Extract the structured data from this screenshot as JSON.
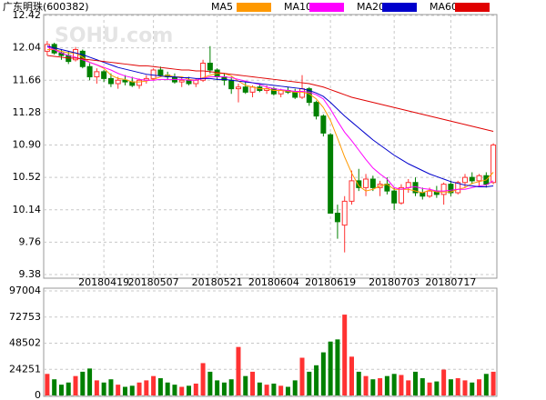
{
  "chart_data": {
    "type": "candlestick",
    "title": "广东明珠(600382)",
    "watermark": "SOHU.com",
    "up_color": "#ff3232",
    "down_color": "#008000",
    "grid": true,
    "categories": [
      null,
      null,
      null,
      null,
      null,
      null,
      null,
      null,
      "20180419",
      null,
      null,
      null,
      null,
      null,
      null,
      "20180507",
      null,
      null,
      null,
      null,
      null,
      null,
      null,
      null,
      "20180521",
      null,
      null,
      null,
      null,
      null,
      null,
      null,
      "20180604",
      null,
      null,
      null,
      null,
      null,
      null,
      null,
      "20180619",
      null,
      null,
      null,
      null,
      null,
      null,
      null,
      null,
      "20180703",
      null,
      null,
      null,
      null,
      null,
      null,
      null,
      "20180717",
      null,
      null,
      null,
      null,
      null,
      null
    ],
    "open": [
      12.0,
      12.08,
      11.98,
      11.95,
      11.9,
      12.0,
      11.82,
      11.7,
      11.76,
      11.68,
      11.62,
      11.66,
      11.64,
      11.6,
      11.66,
      11.68,
      11.78,
      11.72,
      11.7,
      11.64,
      11.66,
      11.62,
      11.66,
      11.86,
      11.78,
      11.7,
      11.66,
      11.56,
      11.58,
      11.52,
      11.58,
      11.54,
      11.56,
      11.5,
      11.54,
      11.52,
      11.46,
      11.56,
      11.4,
      11.24,
      11.02,
      10.1,
      9.96,
      10.24,
      10.48,
      10.4,
      10.5,
      10.4,
      10.44,
      10.36,
      10.22,
      10.4,
      10.46,
      10.34,
      10.3,
      10.36,
      10.32,
      10.44,
      10.34,
      10.46,
      10.52,
      10.48,
      10.54,
      10.46
    ],
    "high": [
      12.12,
      12.1,
      12.02,
      12.0,
      12.05,
      12.02,
      11.86,
      11.8,
      11.78,
      11.74,
      11.7,
      11.72,
      11.7,
      11.68,
      11.72,
      11.8,
      11.82,
      11.76,
      11.74,
      11.7,
      11.7,
      11.68,
      11.9,
      12.06,
      11.8,
      11.74,
      11.7,
      11.62,
      11.64,
      11.6,
      11.62,
      11.6,
      11.58,
      11.56,
      11.58,
      11.56,
      11.72,
      11.58,
      11.42,
      11.26,
      11.04,
      10.2,
      10.3,
      10.6,
      10.62,
      10.56,
      10.54,
      10.48,
      10.52,
      10.4,
      10.44,
      10.5,
      10.52,
      10.4,
      10.4,
      10.42,
      10.46,
      10.48,
      10.48,
      10.56,
      10.58,
      10.56,
      10.58,
      10.92
    ],
    "low": [
      11.95,
      11.96,
      11.9,
      11.85,
      11.88,
      11.8,
      11.66,
      11.62,
      11.64,
      11.58,
      11.56,
      11.6,
      11.58,
      11.56,
      11.62,
      11.66,
      11.7,
      11.66,
      11.62,
      11.58,
      11.6,
      11.58,
      11.64,
      11.74,
      11.66,
      11.6,
      11.5,
      11.4,
      11.5,
      11.46,
      11.52,
      11.5,
      11.48,
      11.46,
      11.5,
      11.44,
      11.44,
      11.36,
      11.2,
      11.0,
      10.1,
      9.8,
      9.64,
      10.2,
      10.36,
      10.3,
      10.36,
      10.3,
      10.32,
      10.14,
      10.2,
      10.34,
      10.3,
      10.26,
      10.28,
      10.28,
      10.2,
      10.3,
      10.32,
      10.4,
      10.44,
      10.42,
      10.4,
      10.44
    ],
    "close": [
      12.08,
      11.98,
      11.95,
      11.88,
      12.02,
      11.82,
      11.7,
      11.76,
      11.68,
      11.62,
      11.66,
      11.64,
      11.6,
      11.66,
      11.68,
      11.78,
      11.72,
      11.7,
      11.64,
      11.66,
      11.62,
      11.66,
      11.86,
      11.78,
      11.7,
      11.66,
      11.56,
      11.58,
      11.52,
      11.58,
      11.54,
      11.56,
      11.5,
      11.54,
      11.52,
      11.46,
      11.56,
      11.4,
      11.24,
      11.04,
      10.1,
      10.0,
      10.24,
      10.48,
      10.4,
      10.5,
      10.4,
      10.44,
      10.36,
      10.22,
      10.4,
      10.46,
      10.34,
      10.3,
      10.36,
      10.32,
      10.44,
      10.34,
      10.46,
      10.52,
      10.48,
      10.54,
      10.44,
      10.9
    ],
    "ylim": [
      9.38,
      12.42
    ],
    "yticks": [
      9.38,
      9.76,
      10.14,
      10.52,
      {
        "value": 10.9,
        "label": "10.90"
      },
      11.28,
      11.66,
      12.04,
      12.42
    ],
    "series": [
      {
        "name": "MA5",
        "color": "#ff9900",
        "values": [
          12.02,
          12.02,
          12.0,
          11.98,
          11.98,
          11.93,
          11.87,
          11.84,
          11.8,
          11.72,
          11.68,
          11.67,
          11.64,
          11.64,
          11.65,
          11.67,
          11.7,
          11.72,
          11.7,
          11.7,
          11.67,
          11.66,
          11.69,
          11.72,
          11.74,
          11.74,
          11.71,
          11.65,
          11.6,
          11.58,
          11.56,
          11.56,
          11.54,
          11.54,
          11.53,
          11.52,
          11.52,
          11.5,
          11.44,
          11.34,
          11.19,
          10.98,
          10.76,
          10.57,
          10.42,
          10.36,
          10.38,
          10.42,
          10.44,
          10.38,
          10.38,
          10.38,
          10.36,
          10.34,
          10.37,
          10.35,
          10.35,
          10.35,
          10.38,
          10.4,
          10.45,
          10.47,
          10.49,
          10.58
        ]
      },
      {
        "name": "MA10",
        "color": "#ff00ff",
        "values": [
          12.05,
          12.02,
          11.98,
          11.95,
          11.93,
          11.9,
          11.87,
          11.84,
          11.81,
          11.78,
          11.74,
          11.71,
          11.69,
          11.67,
          11.66,
          11.66,
          11.67,
          11.67,
          11.67,
          11.67,
          11.66,
          11.66,
          11.68,
          11.7,
          11.7,
          11.7,
          11.69,
          11.67,
          11.65,
          11.63,
          11.61,
          11.58,
          11.56,
          11.55,
          11.54,
          11.53,
          11.53,
          11.52,
          11.49,
          11.44,
          11.32,
          11.18,
          11.05,
          10.95,
          10.84,
          10.73,
          10.63,
          10.56,
          10.5,
          10.4,
          10.38,
          10.4,
          10.41,
          10.39,
          10.38,
          10.36,
          10.36,
          10.37,
          10.38,
          10.38,
          10.4,
          10.42,
          10.43,
          10.48
        ]
      },
      {
        "name": "MA20",
        "color": "#0000cc",
        "values": [
          12.06,
          12.04,
          12.02,
          12.0,
          11.98,
          11.96,
          11.93,
          11.9,
          11.87,
          11.84,
          11.81,
          11.79,
          11.77,
          11.75,
          11.73,
          11.72,
          11.71,
          11.7,
          11.7,
          11.69,
          11.69,
          11.68,
          11.68,
          11.68,
          11.67,
          11.67,
          11.66,
          11.65,
          11.64,
          11.63,
          11.62,
          11.61,
          11.6,
          11.59,
          11.58,
          11.57,
          11.56,
          11.54,
          11.51,
          11.47,
          11.4,
          11.32,
          11.24,
          11.17,
          11.1,
          11.03,
          10.96,
          10.9,
          10.84,
          10.78,
          10.73,
          10.68,
          10.64,
          10.6,
          10.56,
          10.53,
          10.5,
          10.47,
          10.45,
          10.43,
          10.42,
          10.41,
          10.41,
          10.42
        ]
      },
      {
        "name": "MA60",
        "color": "#e00000",
        "values": [
          11.95,
          11.94,
          11.93,
          11.92,
          11.92,
          11.91,
          11.9,
          11.89,
          11.88,
          11.87,
          11.86,
          11.85,
          11.84,
          11.83,
          11.83,
          11.82,
          11.81,
          11.8,
          11.79,
          11.78,
          11.78,
          11.77,
          11.77,
          11.76,
          11.75,
          11.74,
          11.73,
          11.72,
          11.71,
          11.7,
          11.69,
          11.68,
          11.67,
          11.66,
          11.65,
          11.64,
          11.63,
          11.62,
          11.6,
          11.58,
          11.55,
          11.52,
          11.49,
          11.46,
          11.44,
          11.42,
          11.4,
          11.38,
          11.36,
          11.34,
          11.32,
          11.3,
          11.28,
          11.26,
          11.24,
          11.22,
          11.2,
          11.18,
          11.16,
          11.14,
          11.12,
          11.1,
          11.08,
          11.06
        ]
      }
    ],
    "volume": [
      20000,
      15000,
      10000,
      12000,
      18000,
      22000,
      25000,
      14000,
      12000,
      15000,
      10000,
      8000,
      9000,
      12000,
      14000,
      18000,
      16000,
      12000,
      10000,
      8000,
      9000,
      11000,
      30000,
      22000,
      14000,
      12000,
      15000,
      45000,
      18000,
      22000,
      12000,
      10000,
      11000,
      9000,
      8000,
      14000,
      35000,
      22000,
      28000,
      40000,
      50000,
      52000,
      75000,
      36000,
      22000,
      18000,
      15000,
      16000,
      18000,
      20000,
      19000,
      14000,
      22000,
      16000,
      12000,
      13000,
      24000,
      15000,
      16000,
      14000,
      12000,
      15000,
      20000,
      22000
    ],
    "volume_ylim": [
      0,
      97004
    ],
    "volume_yticks": [
      0,
      24251,
      48502,
      72753,
      97004
    ]
  }
}
